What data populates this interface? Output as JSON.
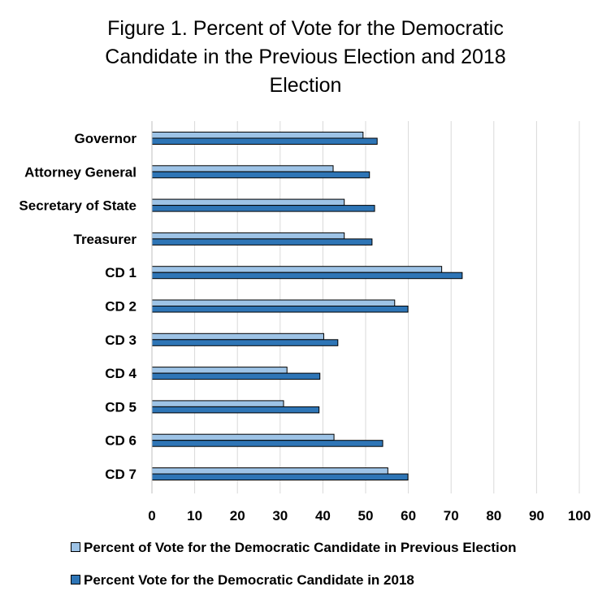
{
  "chart_data": {
    "type": "bar",
    "orientation": "horizontal",
    "title_lines": [
      "Figure 1. Percent of Vote for the Democratic",
      "Candidate in the Previous Election and 2018",
      "Election"
    ],
    "categories": [
      "Governor",
      "Attorney General",
      "Secretary of State",
      "Treasurer",
      "CD 1",
      "CD 2",
      "CD 3",
      "CD 4",
      "CD 5",
      "CD 6",
      "CD 7"
    ],
    "series": [
      {
        "name": "Percent of Vote for the Democratic Candidate in Previous Election",
        "color": "#9dc3e6",
        "values": [
          49.4,
          42.4,
          45.0,
          45.0,
          67.8,
          56.8,
          40.2,
          31.6,
          30.8,
          42.6,
          55.2
        ]
      },
      {
        "name": "Percent Vote for the Democratic Candidate in 2018",
        "color": "#2e75b6",
        "values": [
          52.7,
          50.9,
          52.1,
          51.5,
          72.6,
          59.9,
          43.5,
          39.3,
          39.1,
          54.0,
          59.9
        ]
      }
    ],
    "xlim": [
      0,
      100
    ],
    "xticks": [
      "0",
      "10",
      "20",
      "30",
      "40",
      "50",
      "60",
      "70",
      "80",
      "90",
      "100"
    ],
    "grid": "vertical",
    "legend_position": "bottom",
    "xlabel": "",
    "ylabel": ""
  }
}
